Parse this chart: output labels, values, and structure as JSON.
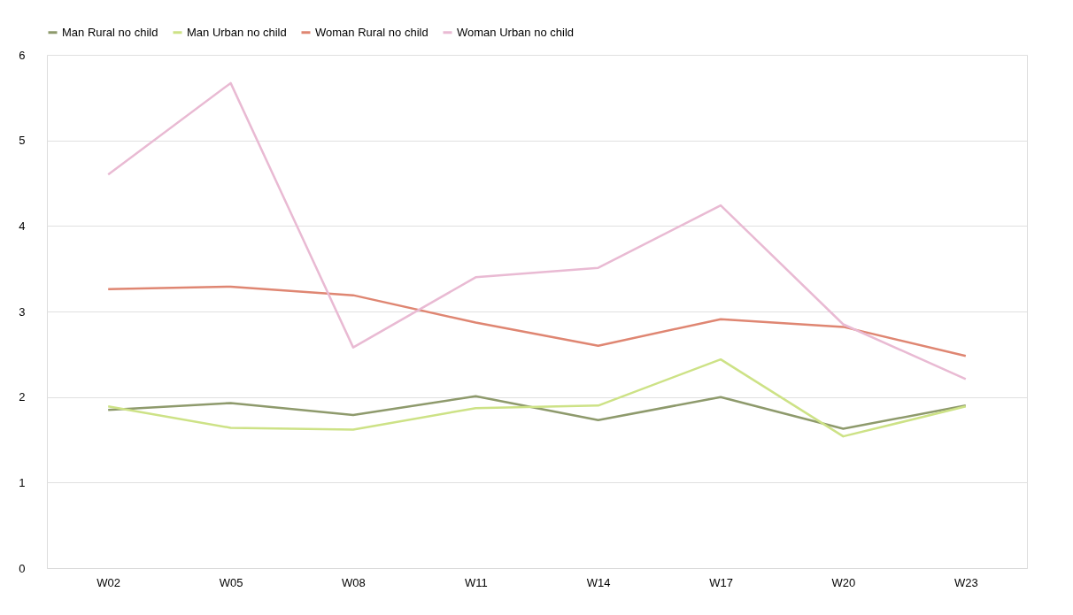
{
  "chart_data": {
    "type": "line",
    "categories": [
      "W02",
      "W05",
      "W08",
      "W11",
      "W14",
      "W17",
      "W20",
      "W23"
    ],
    "series": [
      {
        "name": "Man Rural no child",
        "color": "#8e9a6c",
        "values": [
          1.85,
          1.93,
          1.79,
          2.01,
          1.73,
          2.0,
          1.63,
          1.9
        ]
      },
      {
        "name": "Man Urban no child",
        "color": "#cde286",
        "values": [
          1.89,
          1.64,
          1.62,
          1.87,
          1.9,
          2.44,
          1.54,
          1.89
        ]
      },
      {
        "name": "Woman Rural no child",
        "color": "#df8672",
        "values": [
          3.26,
          3.29,
          3.19,
          2.87,
          2.6,
          2.91,
          2.82,
          2.48
        ]
      },
      {
        "name": "Woman Urban no child",
        "color": "#e9bad3",
        "values": [
          4.6,
          5.67,
          2.58,
          3.4,
          3.51,
          4.24,
          2.85,
          2.21
        ]
      }
    ],
    "ylim": [
      0,
      6
    ],
    "yticks": [
      0,
      1,
      2,
      3,
      4,
      5,
      6
    ],
    "grid": "y",
    "legend": "top",
    "marker": "none",
    "line_style": "solid"
  }
}
